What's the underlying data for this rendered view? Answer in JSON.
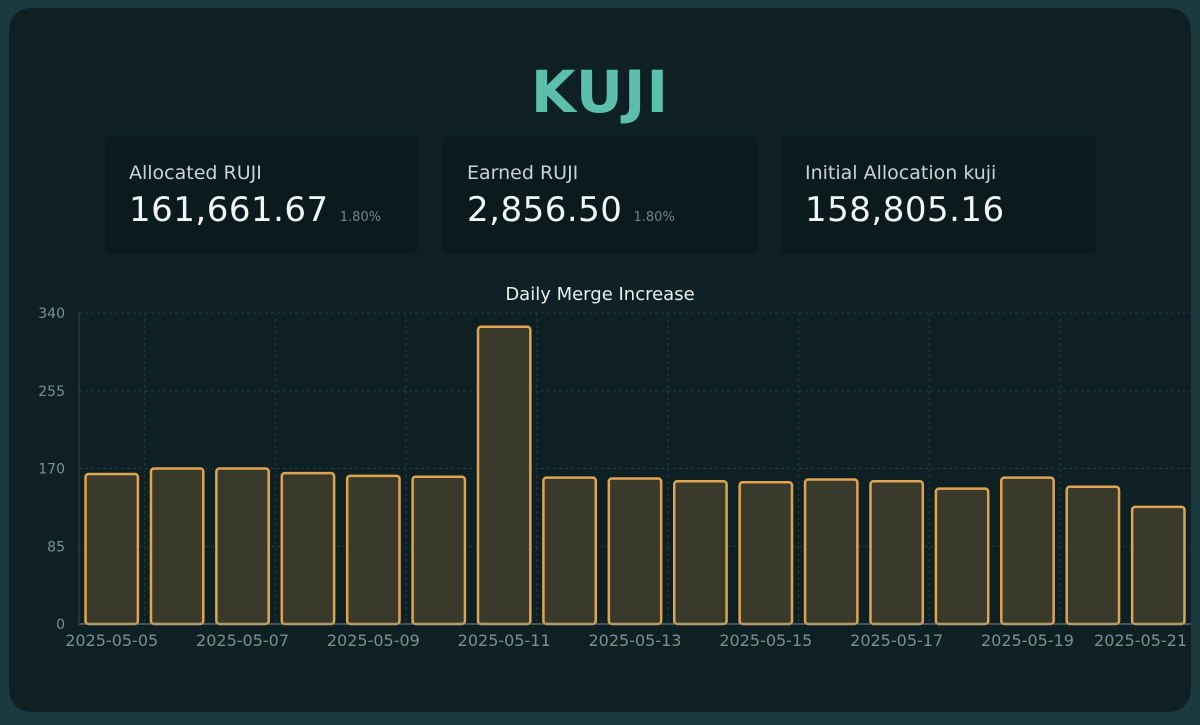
{
  "header": {
    "title": "KUJI"
  },
  "stats": [
    {
      "label": "Allocated RUJI",
      "value": "161,661.67",
      "sub": "1.80%"
    },
    {
      "label": "Earned RUJI",
      "value": "2,856.50",
      "sub": "1.80%"
    },
    {
      "label": "Initial Allocation kuji",
      "value": "158,805.16",
      "sub": ""
    }
  ],
  "colors": {
    "accent": "#5bbfae",
    "bar_fill": "#3a3a2c",
    "bar_stroke": "#e0a44f",
    "card_bg": "#0e2024",
    "page_bg": "#1b3a40"
  },
  "chart_data": {
    "type": "bar",
    "title": "Daily Merge Increase",
    "xlabel": "",
    "ylabel": "",
    "ylim": [
      0,
      340
    ],
    "yticks": [
      0,
      85,
      170,
      255,
      340
    ],
    "categories": [
      "2025-05-05",
      "2025-05-06",
      "2025-05-07",
      "2025-05-08",
      "2025-05-09",
      "2025-05-10",
      "2025-05-11",
      "2025-05-12",
      "2025-05-13",
      "2025-05-14",
      "2025-05-15",
      "2025-05-16",
      "2025-05-17",
      "2025-05-18",
      "2025-05-19",
      "2025-05-20",
      "2025-05-21"
    ],
    "xtick_labels": [
      "2025-05-05",
      "2025-05-07",
      "2025-05-09",
      "2025-05-11",
      "2025-05-13",
      "2025-05-15",
      "2025-05-17",
      "2025-05-19",
      "2025-05-21"
    ],
    "values": [
      164,
      170,
      170,
      165,
      162,
      161,
      325,
      160,
      159,
      156,
      155,
      158,
      156,
      148,
      160,
      150,
      128
    ],
    "grid": true,
    "legend": "none"
  }
}
